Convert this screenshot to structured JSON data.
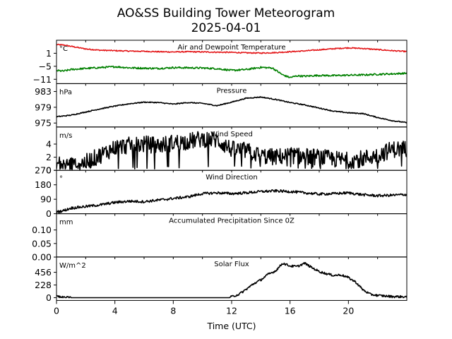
{
  "chart_data": {
    "type": "line",
    "title": "AO&SS Building Tower Meteorogram",
    "subtitle": "2025-04-01",
    "xlabel": "Time (UTC)",
    "xlim": [
      0,
      24
    ],
    "xticks": [
      0,
      4,
      8,
      12,
      16,
      20
    ],
    "xtick_labels": [
      "0",
      "4",
      "8",
      "12",
      "16",
      "20"
    ],
    "panels": [
      {
        "id": "temp",
        "title": "Air and Dewpoint Temperature",
        "unit": "°C",
        "ylim": [
          -13,
          7
        ],
        "yticks": [
          1,
          -5,
          -11
        ],
        "ytick_labels": [
          "1",
          "−5",
          "−11"
        ],
        "series": [
          {
            "color": "#e41a1c",
            "noise": 0.25,
            "points": [
              [
                0,
                5
              ],
              [
                0.5,
                4.8
              ],
              [
                1,
                4.2
              ],
              [
                2,
                3
              ],
              [
                3,
                2.4
              ],
              [
                4,
                2.2
              ],
              [
                5,
                2
              ],
              [
                6,
                1.9
              ],
              [
                7,
                1.7
              ],
              [
                8,
                1.6
              ],
              [
                9,
                1.7
              ],
              [
                10,
                1.6
              ],
              [
                11,
                1.5
              ],
              [
                12,
                1.4
              ],
              [
                13,
                1.2
              ],
              [
                14,
                1.1
              ],
              [
                15,
                1.3
              ],
              [
                16,
                1.7
              ],
              [
                17,
                2.1
              ],
              [
                18,
                2.6
              ],
              [
                19,
                3.1
              ],
              [
                20,
                3.5
              ],
              [
                21,
                3.2
              ],
              [
                22,
                2.7
              ],
              [
                23,
                2.2
              ],
              [
                24,
                1.8
              ]
            ]
          },
          {
            "color": "#008000",
            "noise": 0.4,
            "points": [
              [
                0,
                -7
              ],
              [
                0.5,
                -7.2
              ],
              [
                1,
                -6.5
              ],
              [
                2,
                -6
              ],
              [
                3,
                -5.6
              ],
              [
                4,
                -5.2
              ],
              [
                5,
                -5.7
              ],
              [
                6,
                -5.9
              ],
              [
                7,
                -6
              ],
              [
                8,
                -5.6
              ],
              [
                9,
                -5.7
              ],
              [
                10,
                -5.8
              ],
              [
                11,
                -6.1
              ],
              [
                12,
                -6.9
              ],
              [
                13,
                -6.5
              ],
              [
                14,
                -5.5
              ],
              [
                14.8,
                -5.8
              ],
              [
                15.5,
                -9
              ],
              [
                16,
                -10.2
              ],
              [
                16.5,
                -9.4
              ],
              [
                17,
                -9.6
              ],
              [
                18,
                -9.2
              ],
              [
                19,
                -9.3
              ],
              [
                20,
                -9.1
              ],
              [
                21,
                -9
              ],
              [
                22,
                -8.7
              ],
              [
                23,
                -8.5
              ],
              [
                24,
                -8.2
              ]
            ]
          }
        ]
      },
      {
        "id": "pressure",
        "title": "Pressure",
        "unit": "hPa",
        "ylim": [
          974,
          985
        ],
        "yticks": [
          983,
          979,
          975
        ],
        "ytick_labels": [
          "983",
          "979",
          "975"
        ],
        "series": [
          {
            "color": "#000000",
            "noise": 0.12,
            "points": [
              [
                0,
                976.6
              ],
              [
                1,
                977
              ],
              [
                2,
                977.8
              ],
              [
                3,
                978.6
              ],
              [
                4,
                979.3
              ],
              [
                5,
                979.9
              ],
              [
                6,
                980.3
              ],
              [
                7,
                980.2
              ],
              [
                8,
                979.8
              ],
              [
                9,
                980.2
              ],
              [
                10,
                980
              ],
              [
                11,
                979.4
              ],
              [
                12,
                980.3
              ],
              [
                13,
                981.3
              ],
              [
                14,
                981.6
              ],
              [
                15,
                981
              ],
              [
                16,
                980.2
              ],
              [
                17,
                979.6
              ],
              [
                18,
                978.8
              ],
              [
                19,
                978
              ],
              [
                20,
                977.6
              ],
              [
                21,
                977.4
              ],
              [
                22,
                976.4
              ],
              [
                23,
                975.6
              ],
              [
                24,
                975.1
              ]
            ]
          }
        ]
      },
      {
        "id": "speed",
        "title": "Wind Speed",
        "unit": "m/s",
        "ylim": [
          0,
          6.6
        ],
        "yticks": [
          4,
          2,
          0
        ],
        "ytick_labels": [
          "4",
          "2",
          "0"
        ],
        "series": [
          {
            "color": "#000000",
            "noise": 1.3,
            "points": [
              [
                0,
                1
              ],
              [
                1,
                0.8
              ],
              [
                2,
                1.2
              ],
              [
                3,
                2.3
              ],
              [
                4,
                3.5
              ],
              [
                5,
                3.8
              ],
              [
                6,
                4
              ],
              [
                7,
                3.8
              ],
              [
                8,
                4.2
              ],
              [
                9,
                4.4
              ],
              [
                10,
                4.8
              ],
              [
                11,
                4.6
              ],
              [
                12,
                3.2
              ],
              [
                13,
                3
              ],
              [
                14,
                2.2
              ],
              [
                15,
                2
              ],
              [
                16,
                2.3
              ],
              [
                17,
                2.1
              ],
              [
                18,
                2
              ],
              [
                19,
                1.7
              ],
              [
                20,
                1.5
              ],
              [
                21,
                1.8
              ],
              [
                22,
                2.3
              ],
              [
                23,
                3.2
              ],
              [
                24,
                3.3
              ]
            ]
          }
        ]
      },
      {
        "id": "direction",
        "title": "Wind Direction",
        "unit": "°",
        "ylim": [
          0,
          270
        ],
        "yticks": [
          270,
          180,
          90,
          0
        ],
        "ytick_labels": [
          "270",
          "180",
          "90",
          "0"
        ],
        "series": [
          {
            "color": "#000000",
            "noise": 8,
            "points": [
              [
                0,
                10
              ],
              [
                0.5,
                20
              ],
              [
                1,
                35
              ],
              [
                2,
                45
              ],
              [
                3,
                55
              ],
              [
                4,
                70
              ],
              [
                5,
                78
              ],
              [
                6,
                75
              ],
              [
                7,
                85
              ],
              [
                8,
                95
              ],
              [
                9,
                105
              ],
              [
                10,
                125
              ],
              [
                11,
                130
              ],
              [
                12,
                125
              ],
              [
                13,
                130
              ],
              [
                14,
                138
              ],
              [
                15,
                142
              ],
              [
                16,
                138
              ],
              [
                17,
                130
              ],
              [
                18,
                122
              ],
              [
                19,
                125
              ],
              [
                20,
                130
              ],
              [
                21,
                118
              ],
              [
                22,
                112
              ],
              [
                23,
                115
              ],
              [
                24,
                120
              ]
            ]
          }
        ]
      },
      {
        "id": "precip",
        "title": "Accumulated Precipitation Since 0Z",
        "unit": "mm",
        "ylim": [
          0,
          0.16
        ],
        "yticks": [
          0.1,
          0.05,
          0
        ],
        "ytick_labels": [
          "0.10",
          "0.05",
          "0.00"
        ],
        "series": [
          {
            "color": "#000000",
            "noise": 0,
            "points": [
              [
                0,
                0
              ],
              [
                24,
                0
              ]
            ]
          }
        ]
      },
      {
        "id": "solar",
        "title": "Solar Flux",
        "unit": "W/m^2",
        "ylim": [
          -50,
          730
        ],
        "yticks": [
          456,
          228,
          0
        ],
        "ytick_labels": [
          "456",
          "228",
          "0"
        ],
        "series": [
          {
            "color": "#000000",
            "noise": 20,
            "points": [
              [
                0,
                40
              ],
              [
                0.3,
                5
              ],
              [
                1,
                0
              ],
              [
                11.8,
                0
              ],
              [
                12.5,
                60
              ],
              [
                13,
                150
              ],
              [
                13.5,
                250
              ],
              [
                14,
                320
              ],
              [
                14.5,
                420
              ],
              [
                15,
                480
              ],
              [
                15.5,
                620
              ],
              [
                16,
                570
              ],
              [
                16.5,
                560
              ],
              [
                17,
                620
              ],
              [
                17.5,
                540
              ],
              [
                18,
                470
              ],
              [
                18.5,
                430
              ],
              [
                19,
                400
              ],
              [
                19.5,
                410
              ],
              [
                20,
                360
              ],
              [
                20.5,
                280
              ],
              [
                21,
                140
              ],
              [
                21.5,
                60
              ],
              [
                22,
                40
              ],
              [
                23,
                20
              ],
              [
                24,
                15
              ]
            ]
          }
        ]
      }
    ]
  }
}
